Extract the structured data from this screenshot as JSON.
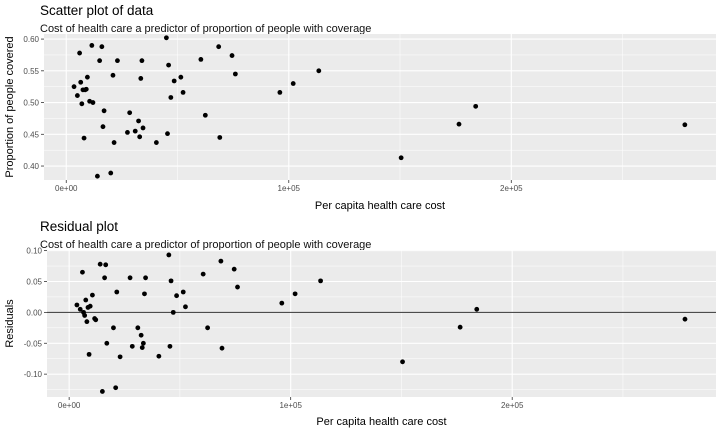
{
  "chart_data": [
    {
      "type": "scatter",
      "title": "Scatter plot of data",
      "subtitle": "Cost of health care a predictor of proportion of people with coverage",
      "xlabel": "Per capita health care cost",
      "ylabel": "Proportion of people covered",
      "xlim": [
        -10000,
        292000
      ],
      "ylim": [
        0.378,
        0.608
      ],
      "xticks": [
        0,
        100000,
        200000
      ],
      "xtick_labels": [
        "0e+00",
        "1e+05",
        "2e+05"
      ],
      "yticks": [
        0.4,
        0.45,
        0.5,
        0.55,
        0.6
      ],
      "ytick_labels": [
        "0.40",
        "0.45",
        "0.50",
        "0.55",
        "0.60"
      ],
      "grid": true,
      "points": [
        [
          3500,
          0.525
        ],
        [
          5000,
          0.511
        ],
        [
          6000,
          0.578
        ],
        [
          6500,
          0.532
        ],
        [
          7000,
          0.498
        ],
        [
          7500,
          0.52
        ],
        [
          8000,
          0.444
        ],
        [
          8500,
          0.52
        ],
        [
          9000,
          0.521
        ],
        [
          9500,
          0.54
        ],
        [
          10500,
          0.502
        ],
        [
          11500,
          0.59
        ],
        [
          12000,
          0.5
        ],
        [
          14000,
          0.384
        ],
        [
          15000,
          0.566
        ],
        [
          16000,
          0.588
        ],
        [
          16500,
          0.462
        ],
        [
          17000,
          0.487
        ],
        [
          20000,
          0.389
        ],
        [
          21000,
          0.543
        ],
        [
          21500,
          0.437
        ],
        [
          23000,
          0.566
        ],
        [
          27500,
          0.453
        ],
        [
          28500,
          0.484
        ],
        [
          31000,
          0.455
        ],
        [
          32500,
          0.471
        ],
        [
          33000,
          0.446
        ],
        [
          33500,
          0.538
        ],
        [
          34000,
          0.566
        ],
        [
          34500,
          0.46
        ],
        [
          40500,
          0.437
        ],
        [
          45000,
          0.602
        ],
        [
          45500,
          0.451
        ],
        [
          46000,
          0.559
        ],
        [
          47000,
          0.508
        ],
        [
          48500,
          0.534
        ],
        [
          51500,
          0.54
        ],
        [
          52500,
          0.516
        ],
        [
          60500,
          0.568
        ],
        [
          62500,
          0.48
        ],
        [
          68500,
          0.588
        ],
        [
          69000,
          0.445
        ],
        [
          74500,
          0.574
        ],
        [
          76000,
          0.545
        ],
        [
          96000,
          0.516
        ],
        [
          102000,
          0.53
        ],
        [
          113500,
          0.55
        ],
        [
          150500,
          0.413
        ],
        [
          176500,
          0.466
        ],
        [
          184000,
          0.494
        ],
        [
          278000,
          0.465
        ]
      ]
    },
    {
      "type": "scatter",
      "title": "Residual plot",
      "subtitle": "Cost of health care a predictor of proportion of people with coverage",
      "xlabel": "Per capita health care cost",
      "ylabel": "Residuals",
      "xlim": [
        -10000,
        292000
      ],
      "ylim": [
        -0.137,
        0.101
      ],
      "xticks": [
        0,
        100000,
        200000
      ],
      "xtick_labels": [
        "0e+00",
        "1e+05",
        "2e+05"
      ],
      "yticks": [
        -0.1,
        -0.05,
        0.0,
        0.05,
        0.1
      ],
      "ytick_labels": [
        "-0.10",
        "-0.05",
        "0.00",
        "0.05",
        "0.10"
      ],
      "grid": true,
      "reference_line_y": 0,
      "points": [
        [
          3500,
          0.012
        ],
        [
          5000,
          0.005
        ],
        [
          6000,
          0.065
        ],
        [
          6500,
          0.0
        ],
        [
          7000,
          -0.005
        ],
        [
          7500,
          0.02
        ],
        [
          8000,
          -0.015
        ],
        [
          8500,
          0.008
        ],
        [
          9000,
          -0.068
        ],
        [
          9500,
          0.01
        ],
        [
          10500,
          0.028
        ],
        [
          11500,
          -0.01
        ],
        [
          12000,
          -0.012
        ],
        [
          14000,
          0.078
        ],
        [
          15000,
          -0.128
        ],
        [
          16000,
          0.056
        ],
        [
          16500,
          0.077
        ],
        [
          17000,
          -0.05
        ],
        [
          20000,
          -0.025
        ],
        [
          21000,
          -0.122
        ],
        [
          21500,
          0.033
        ],
        [
          23000,
          -0.072
        ],
        [
          27500,
          0.056
        ],
        [
          28500,
          -0.055
        ],
        [
          31000,
          -0.025
        ],
        [
          32500,
          -0.037
        ],
        [
          33000,
          -0.057
        ],
        [
          33500,
          -0.05
        ],
        [
          34000,
          0.03
        ],
        [
          34500,
          0.056
        ],
        [
          40500,
          -0.071
        ],
        [
          45000,
          0.093
        ],
        [
          45500,
          -0.055
        ],
        [
          46000,
          0.051
        ],
        [
          47000,
          0.0
        ],
        [
          48500,
          0.027
        ],
        [
          51500,
          0.033
        ],
        [
          52500,
          0.009
        ],
        [
          60500,
          0.062
        ],
        [
          62500,
          -0.025
        ],
        [
          68500,
          0.083
        ],
        [
          69000,
          -0.058
        ],
        [
          74500,
          0.07
        ],
        [
          76000,
          0.041
        ],
        [
          96000,
          0.015
        ],
        [
          102000,
          0.03
        ],
        [
          113500,
          0.051
        ],
        [
          150500,
          -0.08
        ],
        [
          176500,
          -0.024
        ],
        [
          184000,
          0.005
        ],
        [
          278000,
          -0.011
        ]
      ]
    }
  ]
}
